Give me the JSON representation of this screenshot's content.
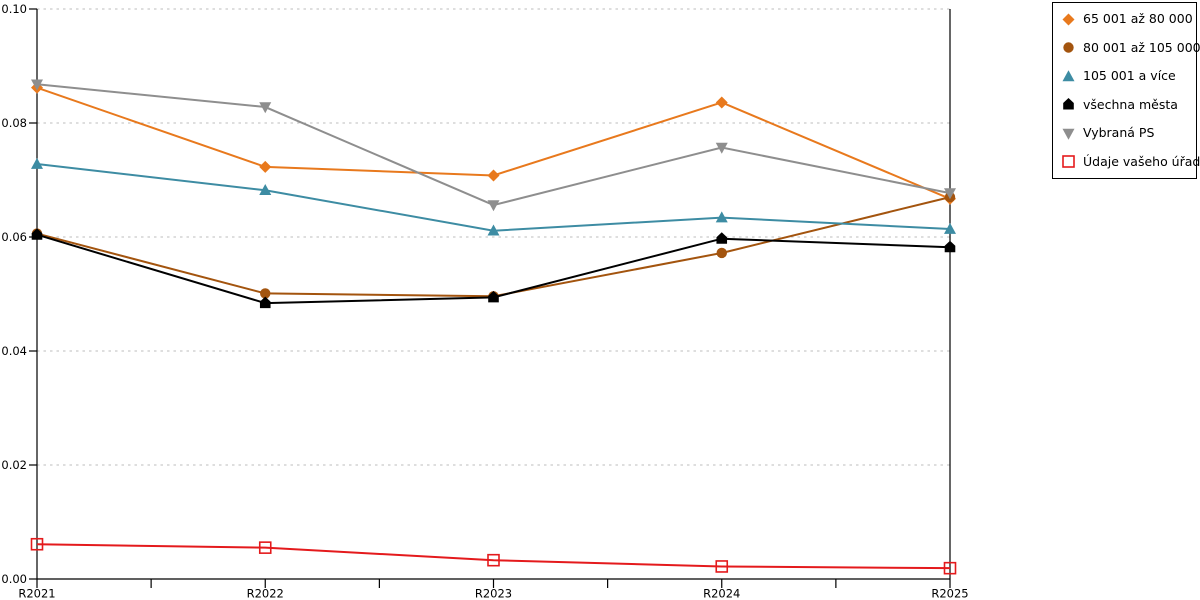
{
  "chart_data": {
    "type": "line",
    "title": "",
    "xlabel": "",
    "ylabel": "",
    "categories": [
      "R2021",
      "R2022",
      "R2023",
      "R2024",
      "R2025"
    ],
    "ylim": [
      0,
      0.1
    ],
    "yticks": [
      0,
      0.02,
      0.04,
      0.06,
      0.08,
      0.1
    ],
    "ytick_labels": [
      "0.00",
      "0.02",
      "0.04",
      "0.06",
      "0.08",
      "0.10"
    ],
    "grid": "horizontal-dotted",
    "x_minor_ticks": true,
    "legend_position": "top-right-outside",
    "background": "#FFFFFF",
    "axis_color": "#000000",
    "grid_color": "#BDBDBD",
    "series": [
      {
        "name": "65 001 až 80 000",
        "marker": "diamond",
        "color": "#E8791D",
        "values": [
          0.0862,
          0.0723,
          0.0708,
          0.0836,
          0.0667
        ]
      },
      {
        "name": "80 001 až 105 000",
        "marker": "circle",
        "color": "#A3540E",
        "values": [
          0.0606,
          0.0501,
          0.0496,
          0.0572,
          0.067
        ]
      },
      {
        "name": "105 001 a více",
        "marker": "triangle-up",
        "color": "#3D8CA3",
        "values": [
          0.0728,
          0.0682,
          0.0611,
          0.0634,
          0.0614
        ]
      },
      {
        "name": "všechna města",
        "marker": "pentagon",
        "color": "#000000",
        "values": [
          0.0604,
          0.0484,
          0.0494,
          0.0597,
          0.0582
        ]
      },
      {
        "name": "Vybraná PS",
        "marker": "triangle-down",
        "color": "#8E8E8E",
        "values": [
          0.0868,
          0.0828,
          0.0656,
          0.0757,
          0.0677
        ]
      },
      {
        "name": "Údaje vašeho úřadu",
        "marker": "square-open",
        "color": "#E41A1C",
        "values": [
          0.0061,
          0.0055,
          0.0033,
          0.0022,
          0.0019
        ]
      }
    ]
  }
}
